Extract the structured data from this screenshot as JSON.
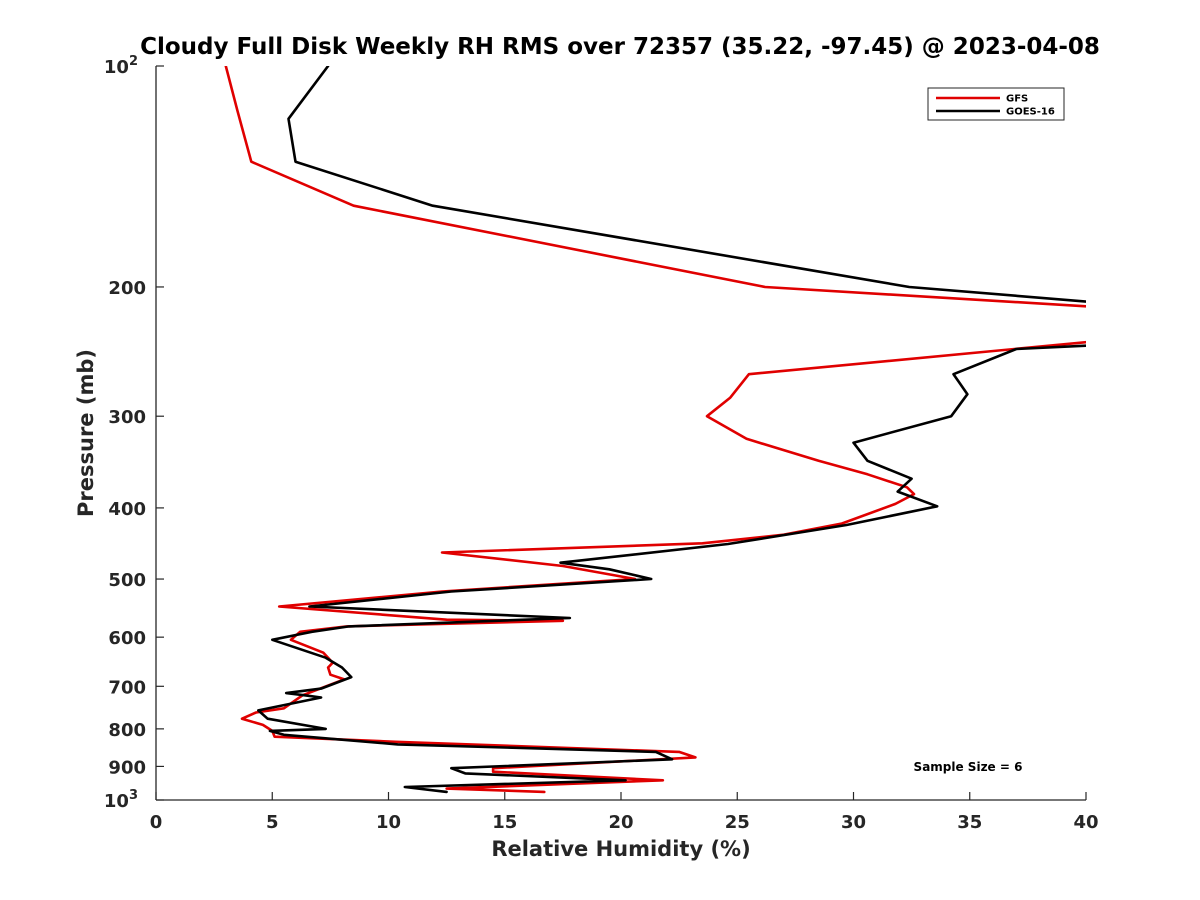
{
  "chart_data": {
    "type": "line",
    "title": "Cloudy Full Disk Weekly RH RMS over 72357 (35.22, -97.45) @ 2023-04-08",
    "xlabel": "Relative Humidity (%)",
    "ylabel": "Pressure (mb)",
    "xlim": [
      0,
      40
    ],
    "ylim": [
      100,
      1000
    ],
    "y_scale": "log",
    "y_reversed": true,
    "grid": false,
    "legend_position": "top-right",
    "x_ticks": [
      0,
      5,
      10,
      15,
      20,
      25,
      30,
      35,
      40
    ],
    "x_tick_labels": [
      "0",
      "5",
      "10",
      "15",
      "20",
      "25",
      "30",
      "35",
      "40"
    ],
    "y_ticks": [
      100,
      200,
      300,
      400,
      500,
      600,
      700,
      800,
      900,
      1000
    ],
    "y_tick_labels": [
      {
        "base": "10",
        "exp": "2"
      },
      {
        "base": "200",
        "exp": ""
      },
      {
        "base": "300",
        "exp": ""
      },
      {
        "base": "400",
        "exp": ""
      },
      {
        "base": "500",
        "exp": ""
      },
      {
        "base": "600",
        "exp": ""
      },
      {
        "base": "700",
        "exp": ""
      },
      {
        "base": "800",
        "exp": ""
      },
      {
        "base": "900",
        "exp": ""
      },
      {
        "base": "10",
        "exp": "3"
      }
    ],
    "annotation": "Sample Size = 6",
    "series": [
      {
        "name": "GFS",
        "color": "#e00000",
        "points": [
          [
            3.0,
            100
          ],
          [
            3.5,
            115
          ],
          [
            4.1,
            135
          ],
          [
            8.5,
            155
          ],
          [
            26.2,
            200
          ],
          [
            40.5,
            213
          ],
          [
            40.5,
            237
          ],
          [
            25.5,
            263
          ],
          [
            24.7,
            283
          ],
          [
            23.7,
            300
          ],
          [
            25.4,
            322
          ],
          [
            28.5,
            345
          ],
          [
            30.6,
            360
          ],
          [
            32.3,
            375
          ],
          [
            32.6,
            383
          ],
          [
            31.8,
            395
          ],
          [
            29.5,
            420
          ],
          [
            27.0,
            435
          ],
          [
            23.5,
            447
          ],
          [
            12.3,
            460
          ],
          [
            17.5,
            480
          ],
          [
            20.6,
            500
          ],
          [
            12.3,
            520
          ],
          [
            5.3,
            545
          ],
          [
            12.5,
            568
          ],
          [
            17.5,
            570
          ],
          [
            8.2,
            580
          ],
          [
            6.2,
            590
          ],
          [
            5.8,
            605
          ],
          [
            7.2,
            630
          ],
          [
            7.6,
            650
          ],
          [
            7.4,
            660
          ],
          [
            7.5,
            675
          ],
          [
            8.1,
            685
          ],
          [
            6.3,
            720
          ],
          [
            5.5,
            750
          ],
          [
            4.3,
            760
          ],
          [
            3.7,
            775
          ],
          [
            4.6,
            790
          ],
          [
            5.0,
            805
          ],
          [
            5.1,
            820
          ],
          [
            10.3,
            833
          ],
          [
            22.5,
            860
          ],
          [
            23.2,
            875
          ],
          [
            14.5,
            905
          ],
          [
            14.5,
            915
          ],
          [
            21.8,
            940
          ],
          [
            12.5,
            965
          ],
          [
            16.7,
            975
          ]
        ]
      },
      {
        "name": "GOES-16",
        "color": "#000000",
        "points": [
          [
            7.4,
            100
          ],
          [
            5.7,
            118
          ],
          [
            6.0,
            135
          ],
          [
            11.9,
            155
          ],
          [
            32.4,
            200
          ],
          [
            40.5,
            210
          ],
          [
            40.5,
            240
          ],
          [
            37.0,
            243
          ],
          [
            34.3,
            263
          ],
          [
            34.9,
            280
          ],
          [
            34.2,
            300
          ],
          [
            30.0,
            326
          ],
          [
            30.6,
            345
          ],
          [
            32.5,
            365
          ],
          [
            31.9,
            380
          ],
          [
            33.6,
            398
          ],
          [
            29.7,
            422
          ],
          [
            24.6,
            448
          ],
          [
            17.4,
            475
          ],
          [
            19.5,
            485
          ],
          [
            21.3,
            500
          ],
          [
            12.7,
            520
          ],
          [
            6.6,
            545
          ],
          [
            17.8,
            565
          ],
          [
            8.3,
            580
          ],
          [
            6.7,
            590
          ],
          [
            5.0,
            605
          ],
          [
            7.3,
            640
          ],
          [
            8.0,
            660
          ],
          [
            8.4,
            680
          ],
          [
            7.1,
            705
          ],
          [
            5.6,
            715
          ],
          [
            6.4,
            720
          ],
          [
            7.1,
            725
          ],
          [
            4.4,
            755
          ],
          [
            4.8,
            775
          ],
          [
            7.3,
            800
          ],
          [
            4.9,
            805
          ],
          [
            5.5,
            815
          ],
          [
            10.4,
            840
          ],
          [
            21.5,
            860
          ],
          [
            22.2,
            880
          ],
          [
            12.7,
            905
          ],
          [
            13.3,
            920
          ],
          [
            20.2,
            940
          ],
          [
            10.7,
            960
          ],
          [
            12.5,
            975
          ]
        ]
      }
    ]
  }
}
